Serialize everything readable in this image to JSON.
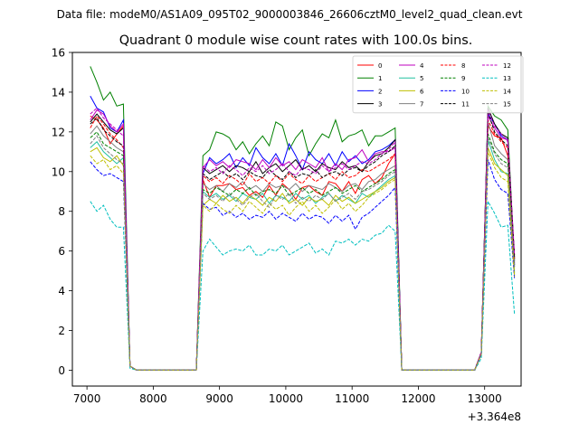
{
  "chart_data": {
    "type": "line",
    "suptitle": "Data file: modeM0/AS1A09_095T02_9000003846_26606cztM0_level2_quad_clean.evt",
    "title": "Quadrant 0 module wise count rates with 100.0s bins.",
    "xlabel": "",
    "ylabel": "",
    "x_offset_label": "+3.364e8",
    "xlim": [
      6780,
      13550
    ],
    "ylim": [
      -0.8,
      16
    ],
    "x_ticks": [
      7000,
      8000,
      9000,
      10000,
      11000,
      12000,
      13000
    ],
    "x_tick_labels": [
      "7000",
      "8000",
      "9000",
      "10000",
      "11000",
      "12000",
      "13000"
    ],
    "y_ticks": [
      0,
      2,
      4,
      6,
      8,
      10,
      12,
      14,
      16
    ],
    "y_tick_labels": [
      "0",
      "2",
      "4",
      "6",
      "8",
      "10",
      "12",
      "14",
      "16"
    ],
    "legend": {
      "position": "top-right",
      "columns": 4
    },
    "colors": [
      "#ff0000",
      "#008000",
      "#0000ff",
      "#000000",
      "#bf00bf",
      "#20c0a0",
      "#bfbf00",
      "#808080",
      "#ff0000",
      "#008000",
      "#0000ff",
      "#000000",
      "#bf00bf",
      "#00bfbf",
      "#bfbf00",
      "#808080"
    ],
    "x": [
      7050,
      7150,
      7250,
      7350,
      7450,
      7550,
      7650,
      7750,
      7850,
      8650,
      8750,
      8850,
      8950,
      9050,
      9150,
      9250,
      9350,
      9450,
      9550,
      9650,
      9750,
      9850,
      9950,
      10050,
      10150,
      10250,
      10350,
      10450,
      10550,
      10650,
      10750,
      10850,
      10950,
      11050,
      11150,
      11250,
      11350,
      11450,
      11550,
      11650,
      11750,
      11850,
      12850,
      12950,
      13050,
      13150,
      13250,
      13350,
      13450
    ],
    "series": [
      {
        "name": "0",
        "style": "solid",
        "values": [
          12.8,
          12.6,
          12.2,
          11.4,
          11.9,
          12.3,
          0.2,
          0,
          0,
          0,
          9.6,
          8.7,
          9.3,
          9.3,
          9.4,
          9.1,
          9.2,
          8.8,
          9.0,
          8.7,
          9.3,
          8.8,
          9.4,
          9.1,
          8.6,
          9.2,
          9.3,
          9.0,
          8.8,
          9.5,
          9.4,
          9.0,
          9.5,
          8.9,
          9.6,
          9.8,
          9.4,
          9.7,
          10.4,
          10.9,
          0,
          0,
          0,
          0.9,
          12.3,
          11.8,
          11.7,
          10.8,
          5.8
        ]
      },
      {
        "name": "1",
        "style": "solid",
        "values": [
          15.3,
          14.5,
          13.6,
          14.0,
          13.3,
          13.4,
          0.2,
          0,
          0,
          0,
          10.8,
          11.1,
          12.0,
          11.9,
          11.7,
          11.1,
          11.5,
          10.9,
          11.4,
          11.8,
          11.3,
          12.5,
          12.3,
          11.1,
          11.7,
          12.1,
          10.8,
          11.4,
          11.9,
          11.7,
          12.6,
          11.5,
          11.8,
          11.9,
          12.1,
          11.3,
          11.8,
          11.8,
          12.0,
          12.2,
          0,
          0,
          0,
          0.8,
          13.3,
          12.8,
          12.6,
          12.1,
          5.5
        ]
      },
      {
        "name": "2",
        "style": "solid",
        "values": [
          13.8,
          13.2,
          13.0,
          12.2,
          12.0,
          12.6,
          0.2,
          0,
          0,
          0,
          9.9,
          10.7,
          10.4,
          10.6,
          10.9,
          10.2,
          10.7,
          10.3,
          11.2,
          10.7,
          10.4,
          10.9,
          10.3,
          11.4,
          10.8,
          10.1,
          11.0,
          10.6,
          10.4,
          10.9,
          10.3,
          11.0,
          10.5,
          10.8,
          10.4,
          10.6,
          11.0,
          11.1,
          11.3,
          11.6,
          0,
          0,
          0,
          0.9,
          12.9,
          12.4,
          11.8,
          11.6,
          5.3
        ]
      },
      {
        "name": "3",
        "style": "solid",
        "values": [
          12.5,
          12.9,
          12.5,
          12.1,
          11.9,
          12.2,
          0.2,
          0,
          0,
          0,
          10.2,
          9.9,
          10.1,
          10.3,
          10.0,
          10.3,
          10.2,
          10.0,
          10.5,
          9.9,
          10.2,
          10.4,
          10.0,
          10.3,
          10.6,
          10.1,
          10.3,
          10.0,
          10.4,
          10.2,
          10.1,
          10.5,
          10.2,
          10.3,
          10.0,
          10.5,
          10.8,
          10.9,
          11.2,
          11.6,
          0,
          0,
          0,
          0.9,
          13.2,
          12.4,
          11.9,
          11.7,
          5.6
        ]
      },
      {
        "name": "4",
        "style": "solid",
        "values": [
          12.6,
          13.1,
          12.9,
          12.3,
          12.0,
          12.4,
          0.2,
          0,
          0,
          0,
          10.2,
          10.6,
          10.3,
          10.5,
          10.2,
          10.6,
          10.5,
          10.4,
          10.1,
          10.6,
          10.2,
          10.7,
          10.3,
          10.5,
          10.1,
          10.6,
          10.4,
          10.2,
          10.7,
          10.0,
          10.4,
          10.1,
          10.6,
          10.7,
          11.1,
          10.5,
          10.9,
          11.0,
          11.0,
          11.2,
          0,
          0,
          0,
          0.9,
          12.8,
          12.2,
          11.7,
          11.6,
          5.4
        ]
      },
      {
        "name": "5",
        "style": "solid",
        "values": [
          11.2,
          11.5,
          11.0,
          10.7,
          10.4,
          10.7,
          0.2,
          0,
          0,
          0,
          9.0,
          8.7,
          8.9,
          8.6,
          8.8,
          8.5,
          8.9,
          8.7,
          8.6,
          8.9,
          8.4,
          8.8,
          8.7,
          8.5,
          8.9,
          8.6,
          8.8,
          8.4,
          8.7,
          8.9,
          8.5,
          8.8,
          8.6,
          8.4,
          8.9,
          8.7,
          9.0,
          9.3,
          9.6,
          9.8,
          0,
          0,
          0,
          0.8,
          11.6,
          10.6,
          10.0,
          9.9,
          4.9
        ]
      },
      {
        "name": "6",
        "style": "solid",
        "values": [
          11.0,
          11.2,
          10.7,
          10.5,
          10.8,
          10.3,
          0.2,
          0,
          0,
          0,
          8.3,
          8.6,
          8.4,
          8.8,
          8.5,
          8.7,
          8.4,
          8.8,
          8.6,
          8.3,
          8.7,
          8.5,
          8.9,
          8.4,
          8.6,
          8.3,
          8.7,
          8.5,
          8.6,
          8.3,
          8.8,
          8.5,
          8.7,
          8.4,
          8.6,
          8.8,
          9.0,
          9.2,
          9.5,
          9.7,
          0,
          0,
          0,
          0.8,
          11.2,
          10.4,
          10.1,
          9.8,
          4.8
        ]
      },
      {
        "name": "7",
        "style": "solid",
        "values": [
          11.9,
          12.3,
          11.8,
          11.5,
          11.2,
          11.0,
          0.2,
          0,
          0,
          0,
          9.4,
          9.1,
          9.3,
          9.0,
          9.4,
          9.2,
          9.5,
          9.1,
          9.3,
          9.0,
          9.4,
          9.2,
          9.3,
          9.1,
          9.4,
          9.0,
          9.3,
          9.2,
          9.1,
          9.4,
          9.2,
          9.0,
          9.3,
          9.4,
          9.1,
          9.5,
          9.6,
          9.9,
          10.1,
          10.3,
          0,
          0,
          0,
          0.9,
          12.5,
          11.3,
          10.9,
          10.6,
          5.3
        ]
      },
      {
        "name": "8",
        "style": "dashed",
        "values": [
          12.2,
          12.8,
          12.4,
          11.9,
          11.6,
          11.2,
          0.2,
          0,
          0,
          0,
          9.8,
          9.5,
          9.7,
          9.4,
          9.8,
          9.6,
          9.3,
          9.9,
          9.5,
          9.7,
          9.4,
          9.8,
          9.5,
          9.9,
          9.6,
          9.4,
          9.8,
          9.5,
          9.7,
          9.9,
          9.6,
          10.0,
          9.7,
          9.8,
          10.1,
          10.0,
          10.2,
          10.4,
          10.6,
          10.9,
          0,
          0,
          0,
          0.9,
          12.6,
          11.9,
          11.5,
          11.2,
          5.6
        ]
      },
      {
        "name": "9",
        "style": "dashed",
        "values": [
          11.7,
          12.0,
          11.4,
          11.2,
          11.0,
          10.8,
          0.2,
          0,
          0,
          0,
          9.1,
          8.9,
          9.2,
          9.0,
          8.8,
          9.1,
          8.9,
          9.2,
          8.8,
          9.0,
          9.1,
          8.9,
          9.3,
          8.8,
          9.0,
          9.2,
          8.9,
          9.1,
          8.8,
          9.0,
          9.2,
          8.9,
          9.1,
          9.3,
          9.0,
          9.2,
          9.4,
          9.6,
          9.9,
          10.1,
          0,
          0,
          0,
          0.8,
          11.9,
          11.0,
          10.6,
          10.4,
          5.2
        ]
      },
      {
        "name": "10",
        "style": "dashed",
        "values": [
          10.5,
          10.1,
          9.8,
          9.9,
          9.7,
          9.5,
          0.2,
          0,
          0,
          0,
          8.4,
          8.1,
          8.2,
          7.8,
          8.0,
          7.7,
          7.9,
          7.6,
          7.8,
          7.7,
          8.0,
          7.6,
          7.9,
          7.7,
          7.5,
          7.9,
          7.6,
          7.8,
          7.7,
          7.4,
          7.8,
          7.5,
          7.8,
          7.1,
          7.7,
          7.9,
          8.2,
          8.5,
          8.8,
          9.2,
          0,
          0,
          0,
          0.8,
          10.6,
          9.6,
          9.1,
          8.9,
          4.6
        ]
      },
      {
        "name": "11",
        "style": "dashed",
        "values": [
          12.4,
          12.7,
          12.1,
          11.8,
          11.5,
          11.3,
          0.2,
          0,
          0,
          0,
          9.9,
          9.6,
          9.8,
          10.0,
          9.7,
          9.9,
          9.6,
          10.0,
          9.8,
          9.7,
          10.1,
          9.8,
          9.6,
          10.0,
          9.7,
          9.9,
          9.8,
          10.1,
          9.7,
          9.9,
          10.0,
          9.8,
          10.1,
          10.2,
          10.0,
          10.3,
          10.5,
          10.8,
          11.0,
          11.3,
          0,
          0,
          0,
          0.9,
          13.0,
          12.0,
          11.6,
          11.3,
          5.7
        ]
      },
      {
        "name": "12",
        "style": "dashed",
        "values": [
          12.9,
          13.2,
          12.7,
          12.4,
          12.1,
          11.8,
          0.2,
          0,
          0,
          0,
          10.3,
          10.0,
          10.2,
          9.9,
          10.3,
          10.1,
          9.8,
          10.2,
          10.0,
          10.3,
          9.9,
          10.1,
          10.4,
          10.0,
          9.8,
          10.2,
          10.1,
          9.9,
          10.3,
          10.0,
          10.2,
          10.4,
          10.1,
          10.3,
          10.5,
          10.4,
          10.6,
          10.9,
          11.1,
          11.5,
          0,
          0,
          0,
          0.9,
          13.1,
          12.3,
          11.9,
          11.5,
          5.8
        ]
      },
      {
        "name": "13",
        "style": "dashed",
        "values": [
          8.5,
          8.0,
          8.3,
          7.6,
          7.2,
          7.2,
          0.1,
          0,
          0,
          0,
          6.0,
          6.6,
          6.2,
          5.8,
          6.0,
          6.1,
          6.0,
          6.3,
          5.8,
          5.8,
          6.1,
          6.0,
          6.3,
          5.8,
          6.0,
          6.2,
          6.4,
          5.9,
          6.1,
          5.8,
          6.5,
          6.4,
          6.6,
          6.3,
          6.6,
          6.5,
          6.8,
          6.9,
          7.3,
          7.0,
          0,
          0,
          0,
          0.6,
          8.5,
          7.9,
          7.2,
          7.3,
          2.8
        ]
      },
      {
        "name": "14",
        "style": "dashed",
        "values": [
          10.8,
          10.4,
          10.6,
          10.1,
          10.3,
          9.9,
          0.2,
          0,
          0,
          0,
          8.3,
          8.0,
          8.4,
          8.1,
          7.9,
          8.3,
          8.0,
          8.5,
          8.2,
          7.9,
          8.4,
          8.1,
          8.3,
          7.8,
          8.2,
          8.5,
          8.0,
          8.3,
          7.9,
          8.2,
          8.6,
          8.1,
          8.4,
          8.0,
          8.3,
          8.7,
          8.9,
          9.1,
          9.4,
          9.6,
          0,
          0,
          0,
          0.8,
          11.0,
          10.2,
          9.7,
          9.5,
          4.7
        ]
      },
      {
        "name": "15",
        "style": "dashed",
        "values": [
          11.4,
          11.8,
          11.2,
          10.9,
          10.6,
          10.4,
          0.2,
          0,
          0,
          0,
          8.9,
          8.6,
          8.8,
          8.5,
          8.9,
          8.6,
          8.3,
          8.7,
          8.9,
          8.5,
          8.2,
          8.8,
          8.6,
          8.9,
          8.4,
          8.7,
          8.5,
          8.8,
          8.6,
          8.9,
          8.5,
          8.7,
          8.9,
          8.6,
          9.0,
          9.1,
          9.3,
          9.5,
          9.8,
          10.0,
          0,
          0,
          0,
          0.8,
          11.7,
          10.9,
          10.4,
          10.2,
          5.1
        ]
      }
    ]
  }
}
